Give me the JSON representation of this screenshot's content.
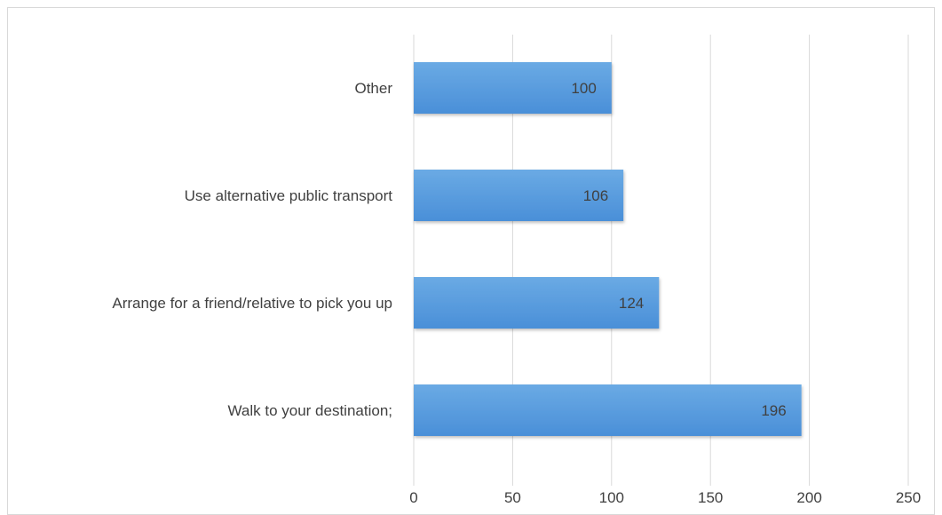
{
  "chart_data": {
    "type": "bar",
    "orientation": "horizontal",
    "categories": [
      "Other",
      "Use alternative public transport",
      "Arrange for a friend/relative to pick you up",
      "Walk to your destination;"
    ],
    "values": [
      100,
      106,
      124,
      196
    ],
    "data_labels": [
      "100",
      "106",
      "124",
      "196"
    ],
    "x_ticks": [
      "0",
      "50",
      "100",
      "150",
      "200",
      "250"
    ],
    "xlim": [
      0,
      250
    ],
    "grid": true,
    "legend": false,
    "bar_color": "#4a8fd8",
    "bar_color_light": "#6aaae4",
    "grid_color": "#d9d9d9",
    "text_color": "#404040"
  }
}
